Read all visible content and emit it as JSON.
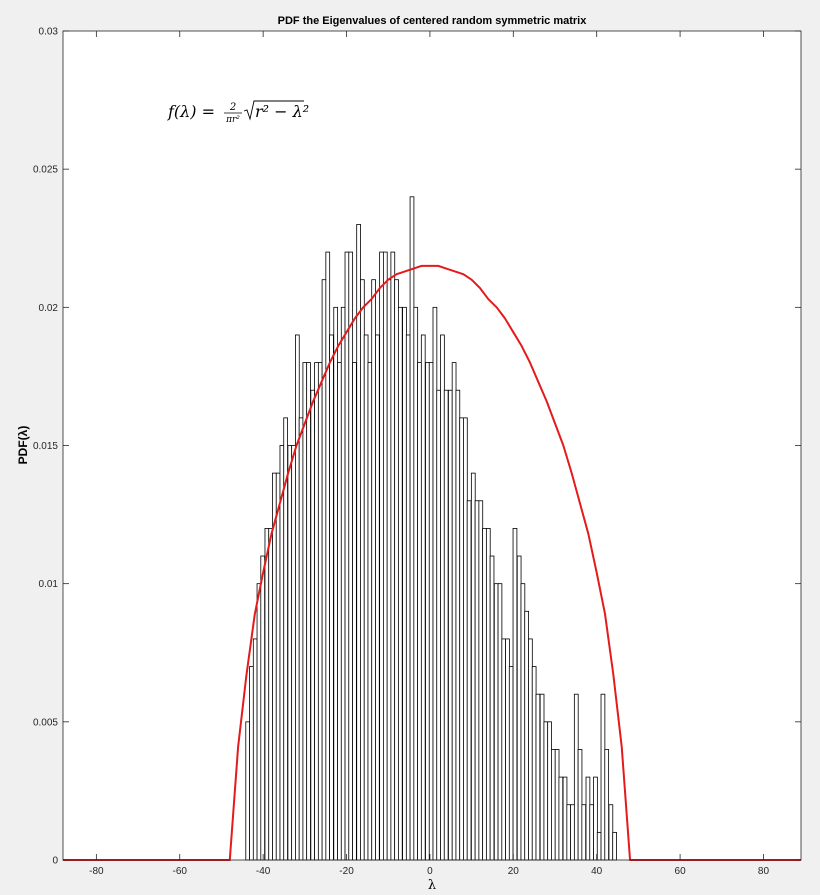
{
  "chart_data": {
    "type": "bar",
    "title": "PDF the  Eigenvalues of centered random symmetric matrix",
    "xlabel": "λ",
    "ylabel": "PDF(λ)",
    "annotation": "f(λ) = 2/(πr²) √(r² − λ²)",
    "xlim": [
      -88,
      89
    ],
    "ylim": [
      0,
      0.03
    ],
    "xticks": [
      -80,
      -60,
      -40,
      -20,
      0,
      20,
      40,
      60,
      80
    ],
    "xtick_labels": [
      "-80",
      "-60",
      "-40",
      "-20",
      "0",
      "20",
      "40",
      "60",
      "80"
    ],
    "yticks": [
      0,
      0.005,
      0.01,
      0.015,
      0.02,
      0.025,
      0.03
    ],
    "ytick_labels": [
      "0",
      "0.005",
      "0.01",
      "0.015",
      "0.02",
      "0.025",
      "0.03"
    ],
    "grid": false,
    "histogram": {
      "bin_width": 0.92,
      "bin_centers": [
        -43.7,
        -42.8,
        -41.9,
        -41.0,
        -40.1,
        -39.1,
        -38.2,
        -37.3,
        -36.4,
        -35.5,
        -34.6,
        -33.6,
        -32.7,
        -31.8,
        -30.9,
        -30.0,
        -29.1,
        -28.1,
        -27.2,
        -26.3,
        -25.4,
        -24.5,
        -23.6,
        -22.6,
        -21.7,
        -20.8,
        -19.9,
        -19.0,
        -18.1,
        -17.1,
        -16.2,
        -15.3,
        -14.4,
        -13.5,
        -12.6,
        -11.6,
        -10.7,
        -9.8,
        -8.9,
        -8.0,
        -7.1,
        -6.1,
        -5.2,
        -4.3,
        -3.4,
        -2.5,
        -1.6,
        -0.6,
        0.3,
        1.2,
        2.1,
        3.0,
        3.9,
        4.9,
        5.8,
        6.7,
        7.6,
        8.5,
        9.4,
        10.4,
        11.3,
        12.2,
        13.1,
        14.0,
        14.9,
        15.9,
        16.8,
        17.7,
        18.6,
        19.5,
        20.4,
        21.4,
        22.3,
        23.2,
        24.1,
        25.0,
        25.9,
        26.9,
        27.8,
        28.7,
        29.6,
        30.5,
        31.4,
        32.4,
        33.3,
        34.2,
        35.1,
        36.0,
        36.9,
        37.9,
        38.8,
        39.7,
        40.6,
        41.5,
        42.4,
        43.4,
        44.3
      ],
      "values": [
        0.005,
        0.007,
        0.008,
        0.01,
        0.011,
        0.012,
        0.012,
        0.014,
        0.014,
        0.015,
        0.016,
        0.015,
        0.015,
        0.019,
        0.016,
        0.018,
        0.018,
        0.017,
        0.018,
        0.018,
        0.021,
        0.022,
        0.019,
        0.02,
        0.018,
        0.02,
        0.022,
        0.022,
        0.018,
        0.023,
        0.021,
        0.019,
        0.018,
        0.021,
        0.019,
        0.022,
        0.022,
        0.021,
        0.022,
        0.021,
        0.02,
        0.02,
        0.019,
        0.024,
        0.02,
        0.018,
        0.019,
        0.018,
        0.018,
        0.02,
        0.017,
        0.019,
        0.017,
        0.017,
        0.018,
        0.017,
        0.016,
        0.016,
        0.013,
        0.014,
        0.013,
        0.013,
        0.012,
        0.012,
        0.011,
        0.01,
        0.01,
        0.008,
        0.008,
        0.007,
        0.012,
        0.011,
        0.01,
        0.009,
        0.008,
        0.007,
        0.006,
        0.006,
        0.005,
        0.005,
        0.004,
        0.004,
        0.003,
        0.003,
        0.002,
        0.002,
        0.006,
        0.004,
        0.002,
        0.003,
        0.002,
        0.003,
        0.001,
        0.006,
        0.004,
        0.002,
        0.001
      ]
    },
    "series": [
      {
        "type": "line",
        "color": "#e41a1c",
        "x": [
          -88,
          -48,
          -46,
          -44,
          -42,
          -40,
          -38,
          -36,
          -34,
          -32,
          -30,
          -28,
          -26,
          -24,
          -22,
          -20,
          -18,
          -16,
          -14,
          -12,
          -10,
          -8,
          -6,
          -4,
          -2,
          0,
          2,
          4,
          6,
          8,
          10,
          12,
          14,
          16,
          18,
          20,
          22,
          24,
          26,
          28,
          30,
          32,
          34,
          36,
          38,
          40,
          42,
          44,
          46,
          48,
          89
        ],
        "y": [
          0,
          0,
          0.0041,
          0.0067,
          0.0089,
          0.0104,
          0.0118,
          0.0129,
          0.014,
          0.015,
          0.0158,
          0.0166,
          0.0173,
          0.018,
          0.0186,
          0.0191,
          0.0196,
          0.02,
          0.0203,
          0.0207,
          0.021,
          0.0212,
          0.0213,
          0.0214,
          0.0215,
          0.0215,
          0.0215,
          0.0214,
          0.0213,
          0.0212,
          0.021,
          0.0207,
          0.0203,
          0.02,
          0.0196,
          0.0191,
          0.0186,
          0.018,
          0.0173,
          0.0166,
          0.0158,
          0.015,
          0.014,
          0.0129,
          0.0118,
          0.0104,
          0.0089,
          0.0067,
          0.0041,
          0,
          0
        ]
      }
    ]
  }
}
